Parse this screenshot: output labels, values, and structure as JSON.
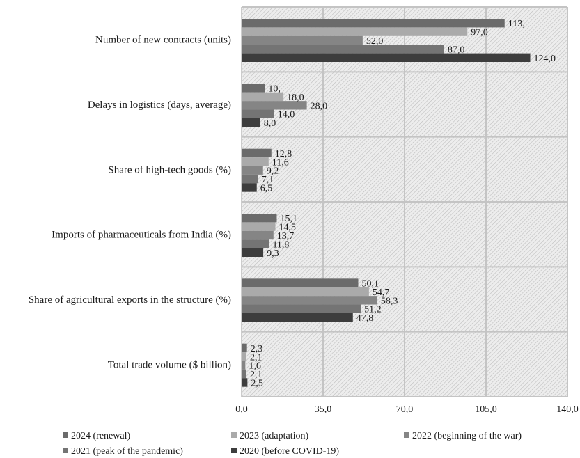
{
  "chart_data": {
    "type": "bar",
    "orientation": "horizontal",
    "categories": [
      "Number of new contracts (units)",
      "Delays in logistics (days, average)",
      "Share of high-tech goods (%)",
      "Imports of pharmaceuticals from India (%)",
      "Share of agricultural exports in the structure (%)",
      "Total trade volume ($ billion)"
    ],
    "series": [
      {
        "name": "2024 (renewal)",
        "color": "#6b6b6b",
        "values": [
          113,
          10,
          12.8,
          15.1,
          50.1,
          2.3
        ],
        "labels": [
          "113,",
          "10,",
          "12,8",
          "15,1",
          "50,1",
          "2,3"
        ]
      },
      {
        "name": "2023 (adaptation)",
        "color": "#aaaaaa",
        "values": [
          97,
          18,
          11.6,
          14.5,
          54.7,
          2.1
        ],
        "labels": [
          "97,0",
          "18,0",
          "11,6",
          "14,5",
          "54,7",
          "2,1"
        ]
      },
      {
        "name": "2022 (beginning of the war)",
        "color": "#858585",
        "values": [
          52,
          28,
          9.2,
          13.7,
          58.3,
          1.6
        ],
        "labels": [
          "52,0",
          "28,0",
          "9,2",
          "13,7",
          "58,3",
          "1,6"
        ]
      },
      {
        "name": "2021 (peak of the pandemic)",
        "color": "#747474",
        "values": [
          87,
          14,
          7.1,
          11.8,
          51.2,
          2.1
        ],
        "labels": [
          "87,0",
          "14,0",
          "7,1",
          "11,8",
          "51,2",
          "2,1"
        ]
      },
      {
        "name": "2020 (before COVID-19)",
        "color": "#3d3d3d",
        "values": [
          124,
          8,
          6.5,
          9.3,
          47.8,
          2.5
        ],
        "labels": [
          "124,0",
          "8,0",
          "6,5",
          "9,3",
          "47,8",
          "2,5"
        ]
      }
    ],
    "xlim": [
      0,
      140
    ],
    "xticks": [
      0,
      35,
      70,
      105,
      140
    ],
    "xtick_labels": [
      "0,0",
      "35,0",
      "70,0",
      "105,0",
      "140,0"
    ],
    "grid": true,
    "legend_position": "bottom"
  }
}
